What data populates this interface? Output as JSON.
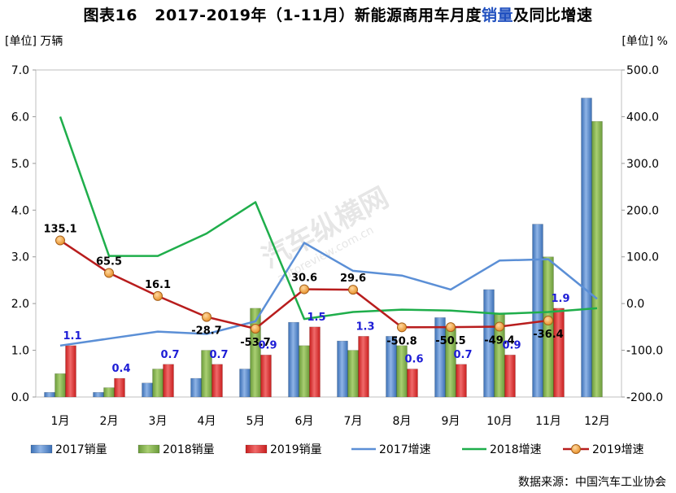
{
  "title": {
    "prefix": "图表16",
    "main": "2017-2019年（1-11月）新能源商用车月度",
    "highlight": "销量",
    "suffix": "及同比增速"
  },
  "units": {
    "left": "[单位] 万辆",
    "right": "[单位] %"
  },
  "source": "数据来源：中国汽车工业协会",
  "watermark": {
    "brand": "汽车纵横网",
    "url": "autoreview.com.cn"
  },
  "colors": {
    "bar2017": "#3a6fb5",
    "bar2018": "#6a9a3a",
    "bar2019": "#c81e1e",
    "line2017": "#5b8fd6",
    "line2018": "#1fae4b",
    "line2019": "#b81d1d",
    "marker2019": "#e8912a",
    "label2019": "#1d1dd6"
  },
  "chart_data": {
    "type": "bar",
    "categories": [
      "1月",
      "2月",
      "3月",
      "4月",
      "5月",
      "6月",
      "7月",
      "8月",
      "9月",
      "10月",
      "11月",
      "12月"
    ],
    "y_left": {
      "min": 0,
      "max": 7,
      "step": 1,
      "tick_labels": [
        "0.0",
        "1.0",
        "2.0",
        "3.0",
        "4.0",
        "5.0",
        "6.0",
        "7.0"
      ]
    },
    "y_right": {
      "min": -200,
      "max": 500,
      "step": 100,
      "tick_labels": [
        "-200.0",
        "-100.0",
        "0.0",
        "100.0",
        "200.0",
        "300.0",
        "400.0",
        "500.0"
      ]
    },
    "series": [
      {
        "name": "2017销量",
        "type": "bar",
        "axis": "left",
        "values": [
          0.1,
          0.1,
          0.3,
          0.4,
          0.6,
          1.6,
          1.2,
          1.3,
          1.7,
          2.3,
          3.7,
          6.4
        ]
      },
      {
        "name": "2018销量",
        "type": "bar",
        "axis": "left",
        "values": [
          0.5,
          0.2,
          0.6,
          1.0,
          1.9,
          1.1,
          1.0,
          1.1,
          1.5,
          1.8,
          3.0,
          5.9
        ]
      },
      {
        "name": "2019销量",
        "type": "bar",
        "axis": "left",
        "values": [
          1.1,
          0.4,
          0.7,
          0.7,
          0.9,
          1.5,
          1.3,
          0.6,
          0.7,
          0.9,
          1.9,
          null
        ],
        "labels": [
          "1.1",
          "0.4",
          "0.7",
          "0.7",
          "0.9",
          "1.5",
          "1.3",
          "0.6",
          "0.7",
          "0.9",
          "1.9",
          ""
        ]
      },
      {
        "name": "2017增速",
        "type": "line",
        "axis": "right",
        "values": [
          -90,
          -75,
          -60,
          -65,
          -38,
          130,
          70,
          60,
          30,
          92,
          95,
          10
        ]
      },
      {
        "name": "2018增速",
        "type": "line",
        "axis": "right",
        "values": [
          400,
          102,
          102,
          150,
          217,
          -33,
          -18,
          -13,
          -15,
          -22,
          -18,
          -10
        ]
      },
      {
        "name": "2019增速",
        "type": "line",
        "axis": "right",
        "values": [
          135.1,
          65.5,
          16.1,
          -28.7,
          -53.7,
          30.6,
          29.6,
          -50.8,
          -50.5,
          -49.4,
          -36.4,
          null
        ],
        "labels": [
          "135.1",
          "65.5",
          "16.1",
          "-28.7",
          "-53.7",
          "30.6",
          "29.6",
          "-50.8",
          "-50.5",
          "-49.4",
          "-36.4",
          ""
        ]
      }
    ]
  }
}
